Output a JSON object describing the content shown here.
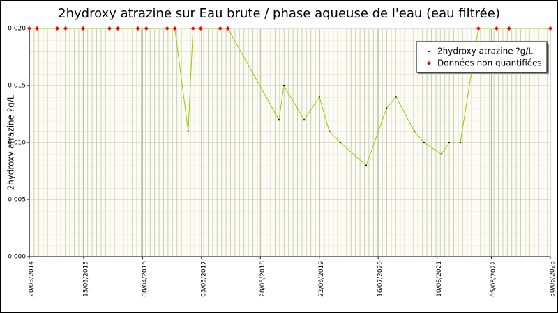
{
  "chart_data": {
    "type": "line",
    "title": "2hydroxy atrazine sur Eau brute / phase aqueuse de l'eau (eau filtrée)",
    "y_label": "2hydroxy atrazine ?g/L",
    "xlim": [
      "20/03/2014",
      "30/08/2023"
    ],
    "xticks": [
      "20/03/2014",
      "15/03/2015",
      "08/04/2016",
      "03/05/2017",
      "28/05/2018",
      "22/06/2019",
      "16/07/2020",
      "10/08/2021",
      "05/08/2022",
      "30/08/2023"
    ],
    "ylim": [
      0,
      0.02
    ],
    "yticks": [
      {
        "value": 0,
        "label": "0.000"
      },
      {
        "value": 0.005,
        "label": "0.005"
      },
      {
        "value": 0.01,
        "label": "0.010"
      },
      {
        "value": 0.015,
        "label": "0.015"
      },
      {
        "value": 0.02,
        "label": "0.020"
      }
    ],
    "grid": true,
    "series": [
      {
        "name": "2hydroxy atrazine ?g/L",
        "color": "#000000",
        "line_color": "#99cc00",
        "x": [
          "20/03/2014",
          "10/05/2014",
          "21/09/2014",
          "15/11/2014",
          "11/03/2015",
          "02/09/2015",
          "28/10/2015",
          "08/03/2016",
          "03/05/2016",
          "18/09/2016",
          "08/11/2016",
          "04/02/2017",
          "08/03/2017",
          "28/04/2017",
          "04/09/2017",
          "25/10/2017",
          "28/09/2018",
          "31/10/2018",
          "14/03/2019",
          "23/06/2019",
          "27/08/2019",
          "09/11/2019",
          "28/04/2020",
          "09/09/2020",
          "12/11/2020",
          "12/03/2021",
          "16/05/2021",
          "08/09/2021",
          "29/10/2021",
          "11/01/2022",
          "11/05/2022",
          "08/09/2022",
          "30/11/2022",
          "30/08/2023"
        ],
        "values": [
          0.02,
          0.02,
          0.02,
          0.02,
          0.02,
          0.02,
          0.02,
          0.02,
          0.02,
          0.02,
          0.02,
          0.011,
          0.02,
          0.02,
          0.02,
          0.02,
          0.012,
          0.015,
          0.012,
          0.014,
          0.011,
          0.01,
          0.008,
          0.013,
          0.014,
          0.011,
          0.01,
          0.009,
          0.01,
          0.01,
          0.02,
          0.02,
          0.02,
          0.02
        ]
      },
      {
        "name": "Données non quantifiées",
        "color": "#ff0000",
        "x": [
          "20/03/2014",
          "10/05/2014",
          "21/09/2014",
          "15/11/2014",
          "11/03/2015",
          "02/09/2015",
          "28/10/2015",
          "08/03/2016",
          "03/05/2016",
          "18/09/2016",
          "08/11/2016",
          "08/03/2017",
          "28/04/2017",
          "04/09/2017",
          "25/10/2017",
          "11/05/2022",
          "08/09/2022",
          "30/11/2022",
          "30/08/2023"
        ],
        "values": [
          0.02,
          0.02,
          0.02,
          0.02,
          0.02,
          0.02,
          0.02,
          0.02,
          0.02,
          0.02,
          0.02,
          0.02,
          0.02,
          0.02,
          0.02,
          0.02,
          0.02,
          0.02,
          0.02
        ]
      }
    ]
  }
}
